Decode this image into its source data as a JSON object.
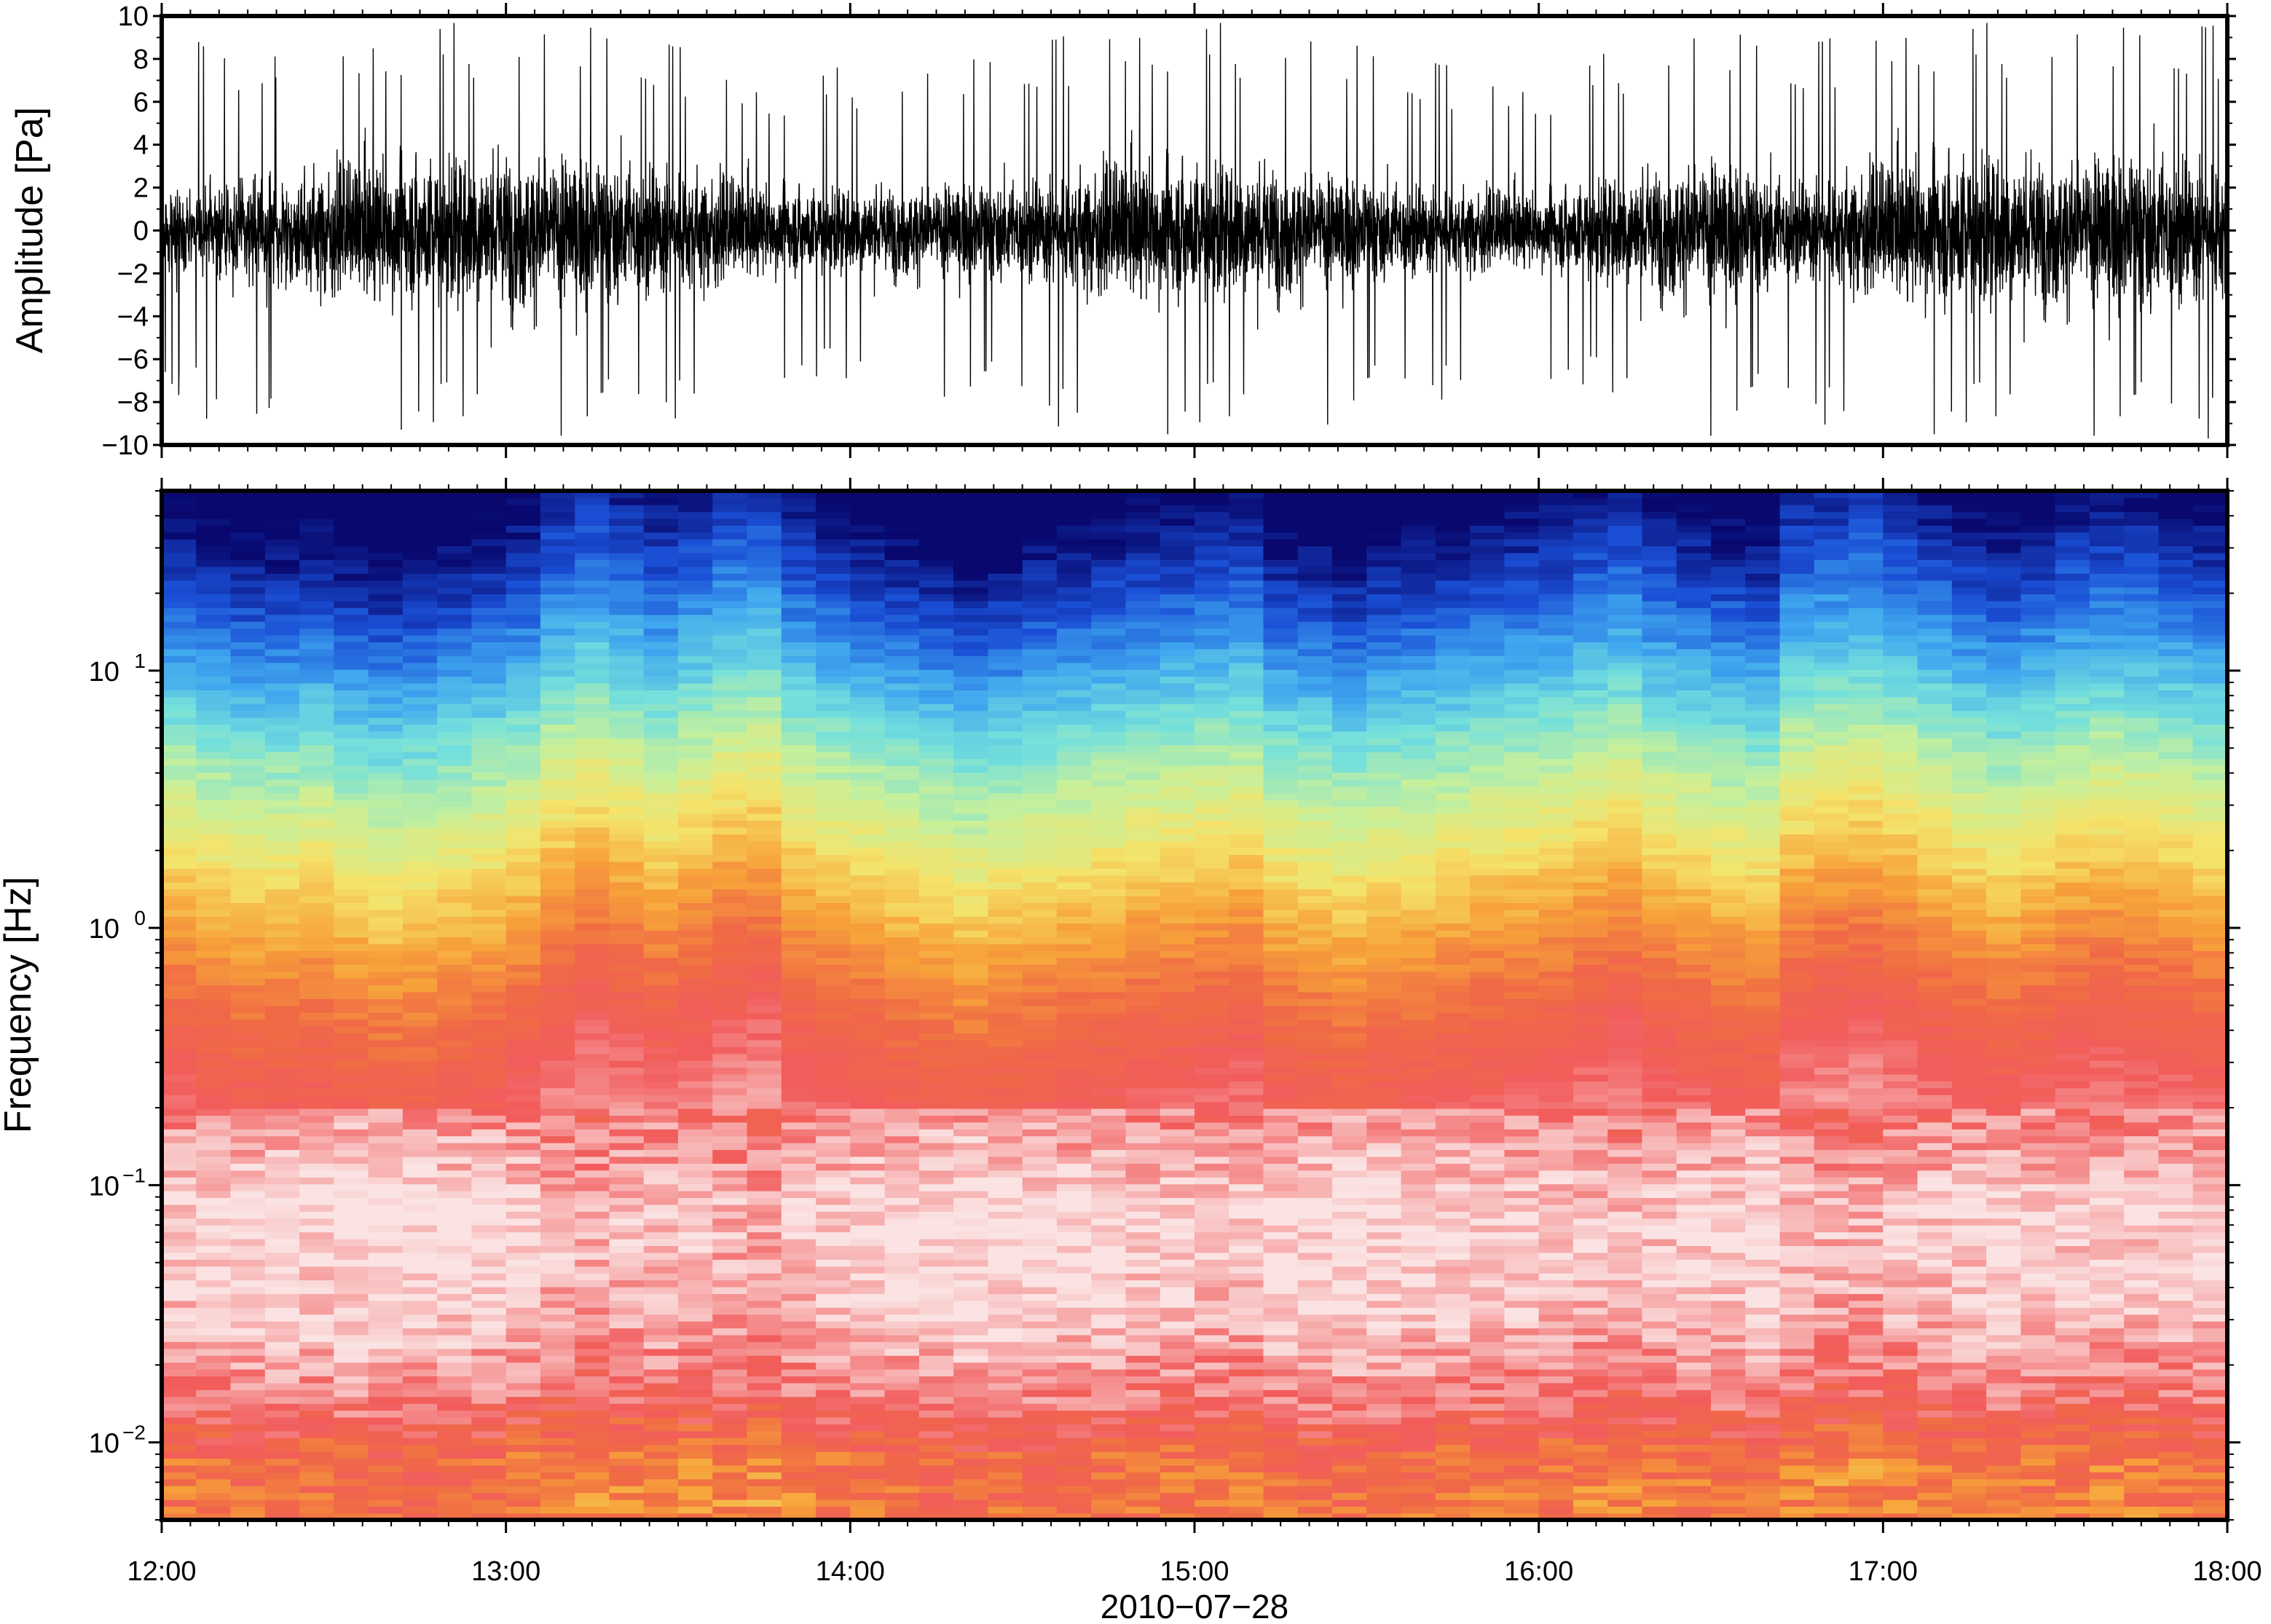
{
  "chart_data": [
    {
      "type": "line",
      "ylabel": "Amplitude [Pa]",
      "ylim": [
        -10,
        10
      ],
      "yticks": [
        -10,
        -8,
        -6,
        -4,
        -2,
        0,
        2,
        4,
        6,
        8,
        10
      ],
      "ytick_labels": [
        "−10",
        "−8",
        "−6",
        "−4",
        "−2",
        "0",
        "2",
        "4",
        "6",
        "8",
        "10"
      ],
      "xlim": [
        "12:00",
        "18:00"
      ],
      "envelope": {
        "times": [
          "12:00",
          "12:15",
          "12:30",
          "12:45",
          "13:00",
          "13:15",
          "13:30",
          "13:45",
          "14:00",
          "14:15",
          "14:30",
          "14:45",
          "15:00",
          "15:15",
          "15:30",
          "15:45",
          "16:00",
          "16:15",
          "16:30",
          "16:45",
          "17:00",
          "17:15",
          "17:30",
          "17:45",
          "18:00"
        ],
        "typical_amplitude": [
          2.5,
          3.5,
          4.5,
          5.0,
          5.5,
          5.0,
          4.5,
          3.0,
          3.0,
          3.2,
          3.5,
          4.5,
          4.8,
          4.5,
          3.5,
          3.0,
          2.5,
          4.0,
          5.0,
          3.5,
          4.5,
          5.5,
          5.0,
          5.5,
          5.0
        ],
        "max_spike": [
          9,
          9,
          9,
          10,
          10,
          10,
          9,
          7,
          8,
          8,
          9,
          10,
          10,
          10,
          9,
          8,
          7,
          9,
          10,
          9,
          10,
          10,
          10,
          10,
          10
        ]
      }
    },
    {
      "type": "heatmap",
      "ylabel": "Frequency [Hz]",
      "yscale": "log",
      "ylim": [
        0.005,
        50
      ],
      "yticks": [
        {
          "base": "10",
          "exp": "−2",
          "value": 0.01
        },
        {
          "base": "10",
          "exp": "−1",
          "value": 0.1
        },
        {
          "base": "10",
          "exp": "0",
          "value": 1
        },
        {
          "base": "10",
          "exp": "1",
          "value": 10
        }
      ],
      "xlabel": "2010−07−28",
      "xticks": [
        "12:00",
        "13:00",
        "14:00",
        "15:00",
        "16:00",
        "17:00",
        "18:00"
      ],
      "xlim": [
        "12:00",
        "18:00"
      ],
      "colormap": [
        "#08086e",
        "#1a4fd6",
        "#3fa7ef",
        "#74e0dc",
        "#c8f09a",
        "#f5e36a",
        "#f7a23a",
        "#f06a45",
        "#f25c5c",
        "#f7a8a8",
        "#fbe3e3"
      ],
      "column_duration_minutes": 6,
      "column_intensity_offset": [
        0.05,
        0.1,
        0.12,
        0.12,
        0.1,
        0.15,
        0.18,
        0.16,
        0.12,
        0.1,
        0.05,
        -0.05,
        -0.1,
        -0.05,
        0.0,
        -0.05,
        -0.1,
        -0.12,
        0.0,
        0.05,
        0.08,
        0.12,
        0.15,
        0.18,
        0.15,
        0.12,
        0.1,
        0.08,
        0.05,
        0.04,
        0.02,
        0.0,
        0.1,
        0.12,
        0.15,
        0.12,
        0.1,
        0.08,
        0.05,
        0.04,
        0.02,
        -0.02,
        -0.05,
        0.02,
        0.05,
        0.08,
        0.1,
        -0.05,
        -0.08,
        -0.1,
        -0.05,
        0.0,
        0.05,
        0.08,
        0.05,
        0.0,
        -0.02,
        0.0,
        0.02,
        0.05
      ]
    }
  ]
}
